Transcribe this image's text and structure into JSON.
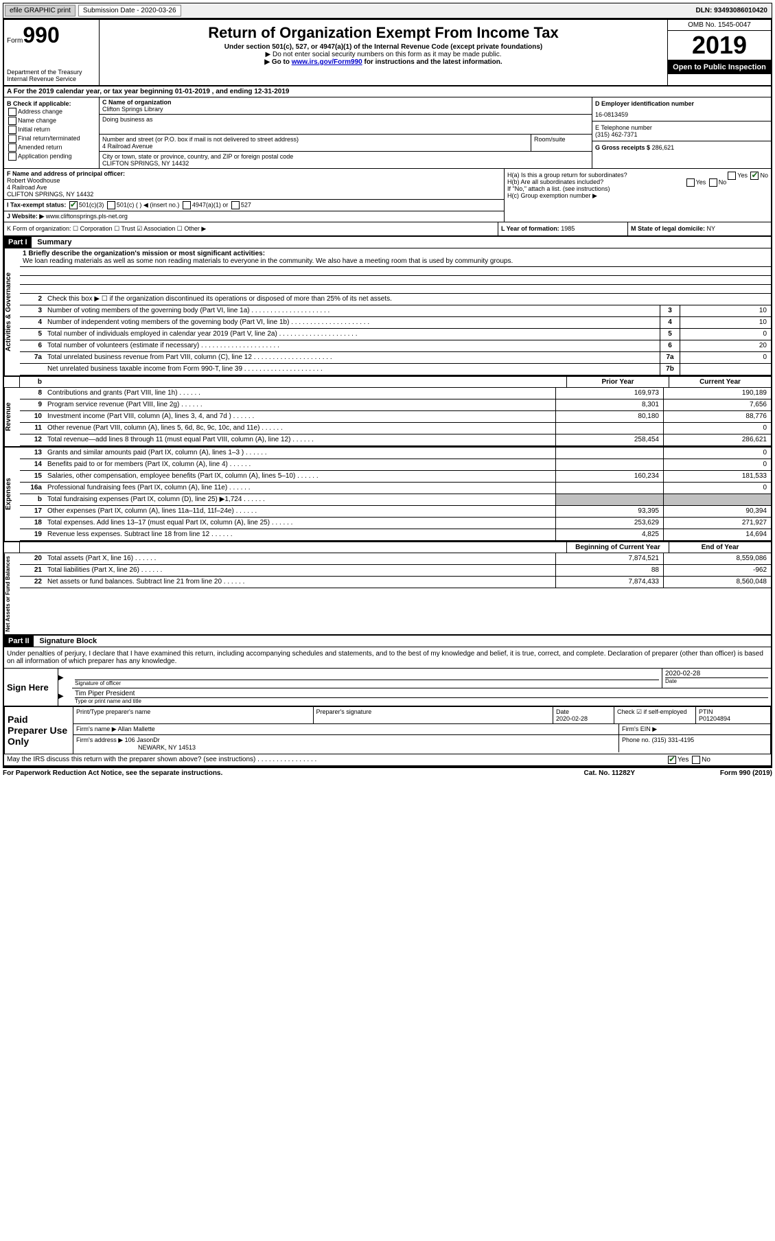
{
  "topbar": {
    "efile": "efile GRAPHIC print",
    "submission_label": "Submission Date - 2020-03-26",
    "dln": "DLN: 93493086010420"
  },
  "header": {
    "form_label": "Form",
    "form_number": "990",
    "dept": "Department of the Treasury\nInternal Revenue Service",
    "title": "Return of Organization Exempt From Income Tax",
    "subtitle": "Under section 501(c), 527, or 4947(a)(1) of the Internal Revenue Code (except private foundations)",
    "note1": "▶ Do not enter social security numbers on this form as it may be made public.",
    "note2_pre": "▶ Go to ",
    "note2_link": "www.irs.gov/Form990",
    "note2_post": " for instructions and the latest information.",
    "omb": "OMB No. 1545-0047",
    "year": "2019",
    "inspection": "Open to Public Inspection"
  },
  "rowA": "A   For the 2019 calendar year, or tax year beginning 01-01-2019   , and ending 12-31-2019",
  "sectionB": {
    "label": "B Check if applicable:",
    "opts": [
      "Address change",
      "Name change",
      "Initial return",
      "Final return/terminated",
      "Amended return",
      "Application pending"
    ]
  },
  "sectionC": {
    "name_label": "C Name of organization",
    "name": "Clifton Springs Library",
    "dba_label": "Doing business as",
    "addr_label": "Number and street (or P.O. box if mail is not delivered to street address)",
    "room_label": "Room/suite",
    "addr": "4 Railroad Avenue",
    "city_label": "City or town, state or province, country, and ZIP or foreign postal code",
    "city": "CLIFTON SPRINGS, NY  14432"
  },
  "sectionD": {
    "label": "D Employer identification number",
    "value": "16-0813459"
  },
  "sectionE": {
    "label": "E Telephone number",
    "value": "(315) 462-7371"
  },
  "sectionG": {
    "label": "G Gross receipts $",
    "value": "286,621"
  },
  "sectionF": {
    "label": "F  Name and address of principal officer:",
    "name": "Robert Woodhouse",
    "addr1": "4 Railroad Ave",
    "addr2": "CLIFTON SPRINGS, NY  14432"
  },
  "sectionI": {
    "label": "I   Tax-exempt status:",
    "opts": [
      "501(c)(3)",
      "501(c) (  ) ◀ (insert no.)",
      "4947(a)(1) or",
      "527"
    ]
  },
  "sectionJ": {
    "label": "J   Website: ▶",
    "value": "www.cliftonsprings.pls-net.org"
  },
  "sectionH": {
    "a": "H(a)  Is this a group return for subordinates?",
    "b": "H(b)  Are all subordinates included?",
    "b_note": "If \"No,\" attach a list. (see instructions)",
    "c": "H(c)  Group exemption number ▶"
  },
  "sectionK": "K Form of organization:  ☐ Corporation  ☐ Trust  ☑ Association  ☐ Other ▶",
  "sectionL": {
    "label": "L Year of formation:",
    "value": "1985"
  },
  "sectionM": {
    "label": "M State of legal domicile:",
    "value": "NY"
  },
  "part1": {
    "header": "Part I",
    "title": "Summary"
  },
  "mission": {
    "label": "1   Briefly describe the organization's mission or most significant activities:",
    "text": "We loan reading materials as well as some non reading materials to everyone in the community. We also have a meeting room that is used by community groups."
  },
  "line2": "Check this box ▶ ☐  if the organization discontinued its operations or disposed of more than 25% of its net assets.",
  "governance_lines": [
    {
      "n": "3",
      "t": "Number of voting members of the governing body (Part VI, line 1a)",
      "box": "3",
      "v": "10"
    },
    {
      "n": "4",
      "t": "Number of independent voting members of the governing body (Part VI, line 1b)",
      "box": "4",
      "v": "10"
    },
    {
      "n": "5",
      "t": "Total number of individuals employed in calendar year 2019 (Part V, line 2a)",
      "box": "5",
      "v": "0"
    },
    {
      "n": "6",
      "t": "Total number of volunteers (estimate if necessary)",
      "box": "6",
      "v": "20"
    },
    {
      "n": "7a",
      "t": "Total unrelated business revenue from Part VIII, column (C), line 12",
      "box": "7a",
      "v": "0"
    },
    {
      "n": "",
      "t": "Net unrelated business taxable income from Form 990-T, line 39",
      "box": "7b",
      "v": ""
    }
  ],
  "col_headers": {
    "b": "b",
    "prior": "Prior Year",
    "current": "Current Year"
  },
  "revenue_lines": [
    {
      "n": "8",
      "t": "Contributions and grants (Part VIII, line 1h)",
      "p": "169,973",
      "c": "190,189"
    },
    {
      "n": "9",
      "t": "Program service revenue (Part VIII, line 2g)",
      "p": "8,301",
      "c": "7,656"
    },
    {
      "n": "10",
      "t": "Investment income (Part VIII, column (A), lines 3, 4, and 7d )",
      "p": "80,180",
      "c": "88,776"
    },
    {
      "n": "11",
      "t": "Other revenue (Part VIII, column (A), lines 5, 6d, 8c, 9c, 10c, and 11e)",
      "p": "",
      "c": "0"
    },
    {
      "n": "12",
      "t": "Total revenue—add lines 8 through 11 (must equal Part VIII, column (A), line 12)",
      "p": "258,454",
      "c": "286,621"
    }
  ],
  "expense_lines": [
    {
      "n": "13",
      "t": "Grants and similar amounts paid (Part IX, column (A), lines 1–3 )",
      "p": "",
      "c": "0"
    },
    {
      "n": "14",
      "t": "Benefits paid to or for members (Part IX, column (A), line 4)",
      "p": "",
      "c": "0"
    },
    {
      "n": "15",
      "t": "Salaries, other compensation, employee benefits (Part IX, column (A), lines 5–10)",
      "p": "160,234",
      "c": "181,533"
    },
    {
      "n": "16a",
      "t": "Professional fundraising fees (Part IX, column (A), line 11e)",
      "p": "",
      "c": "0"
    },
    {
      "n": "b",
      "t": "Total fundraising expenses (Part IX, column (D), line 25) ▶1,724",
      "p": "grey",
      "c": "grey"
    },
    {
      "n": "17",
      "t": "Other expenses (Part IX, column (A), lines 11a–11d, 11f–24e)",
      "p": "93,395",
      "c": "90,394"
    },
    {
      "n": "18",
      "t": "Total expenses. Add lines 13–17 (must equal Part IX, column (A), line 25)",
      "p": "253,629",
      "c": "271,927"
    },
    {
      "n": "19",
      "t": "Revenue less expenses. Subtract line 18 from line 12",
      "p": "4,825",
      "c": "14,694"
    }
  ],
  "net_headers": {
    "b": "Beginning of Current Year",
    "e": "End of Year"
  },
  "net_lines": [
    {
      "n": "20",
      "t": "Total assets (Part X, line 16)",
      "p": "7,874,521",
      "c": "8,559,086"
    },
    {
      "n": "21",
      "t": "Total liabilities (Part X, line 26)",
      "p": "88",
      "c": "-962"
    },
    {
      "n": "22",
      "t": "Net assets or fund balances. Subtract line 21 from line 20",
      "p": "7,874,433",
      "c": "8,560,048"
    }
  ],
  "side_labels": {
    "gov": "Activities & Governance",
    "rev": "Revenue",
    "exp": "Expenses",
    "net": "Net Assets or Fund Balances"
  },
  "part2": {
    "header": "Part II",
    "title": "Signature Block"
  },
  "penalties": "Under penalties of perjury, I declare that I have examined this return, including accompanying schedules and statements, and to the best of my knowledge and belief, it is true, correct, and complete. Declaration of preparer (other than officer) is based on all information of which preparer has any knowledge.",
  "sign": {
    "label": "Sign Here",
    "sig_label": "Signature of officer",
    "date_label": "Date",
    "date": "2020-02-28",
    "name": "Tim Piper President",
    "name_label": "Type or print name and title"
  },
  "paid": {
    "label": "Paid Preparer Use Only",
    "h1": "Print/Type preparer's name",
    "h2": "Preparer's signature",
    "h3": "Date",
    "h3v": "2020-02-28",
    "h4": "Check ☑ if self-employed",
    "h5": "PTIN",
    "h5v": "P01204894",
    "firm_label": "Firm's name   ▶",
    "firm": "Allan Mallette",
    "ein_label": "Firm's EIN ▶",
    "addr_label": "Firm's address ▶",
    "addr1": "106 JasonDr",
    "addr2": "NEWARK, NY  14513",
    "phone_label": "Phone no.",
    "phone": "(315) 331-4195"
  },
  "discuss": "May the IRS discuss this return with the preparer shown above? (see instructions)",
  "footer": {
    "left": "For Paperwork Reduction Act Notice, see the separate instructions.",
    "mid": "Cat. No. 11282Y",
    "right": "Form 990 (2019)"
  }
}
